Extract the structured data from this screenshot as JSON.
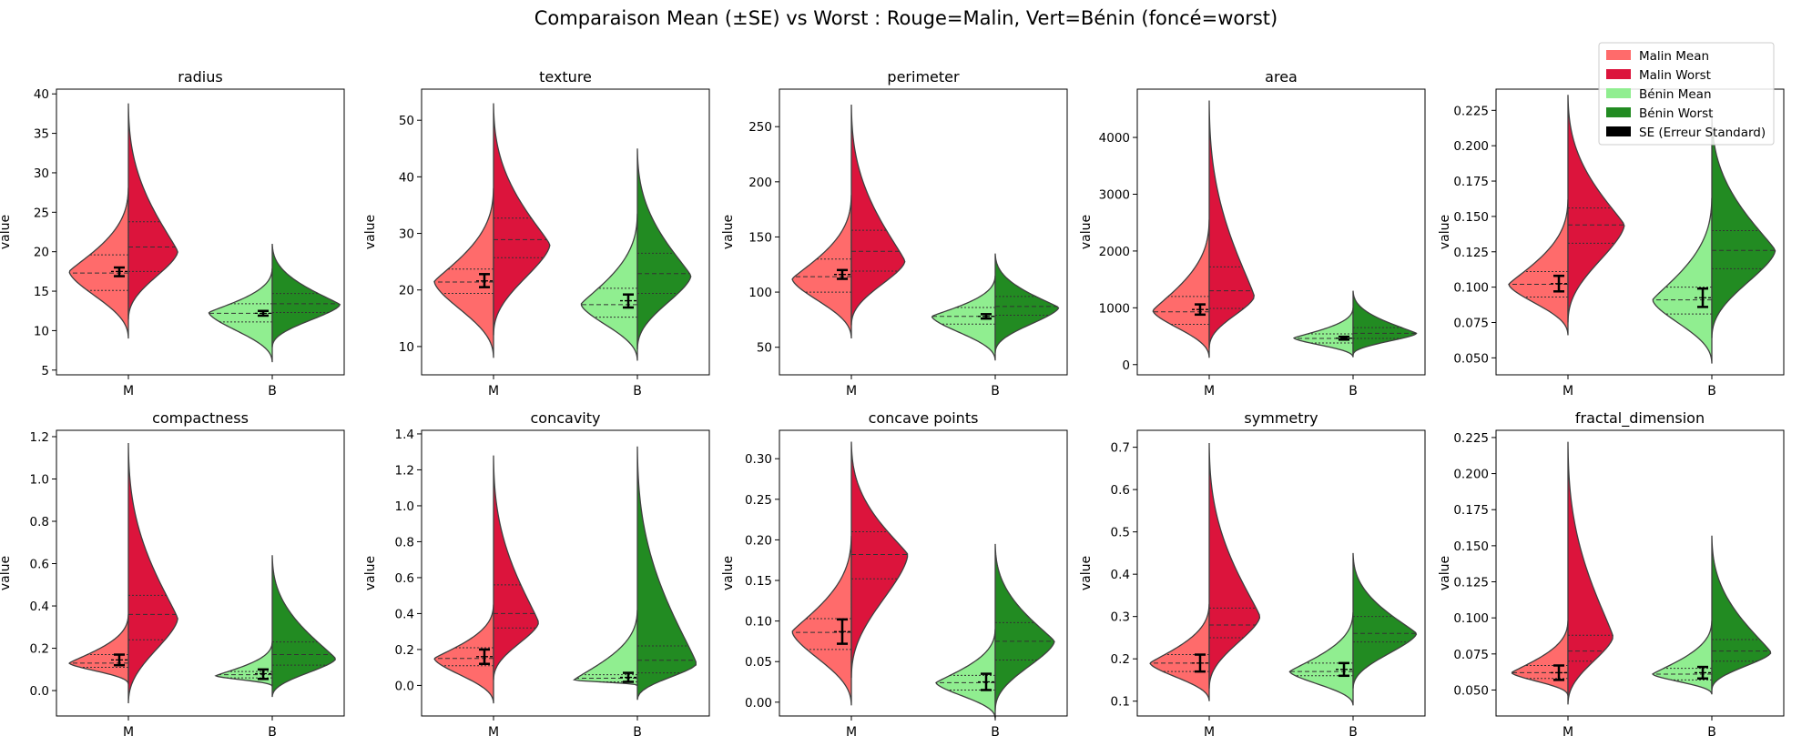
{
  "figure": {
    "title": "Comparaison Mean (±SE) vs Worst : Rouge=Malin, Vert=Bénin (foncé=worst)"
  },
  "legend": {
    "placement": "top-right",
    "entries": [
      {
        "label": "Malin Mean",
        "color": "#ff6b6b"
      },
      {
        "label": "Malin Worst",
        "color": "#dc143c"
      },
      {
        "label": "Bénin Mean",
        "color": "#90ee90"
      },
      {
        "label": "Bénin Worst",
        "color": "#228b22"
      },
      {
        "label": "SE (Erreur Standard)",
        "color": "#000000"
      }
    ]
  },
  "colors": {
    "malin_mean": "#ff6b6b",
    "malin_worst": "#dc143c",
    "benin_mean": "#90ee90",
    "benin_worst": "#228b22",
    "outline": "#3f3f3f",
    "se_bar": "#000000"
  },
  "chart_data": [
    {
      "type": "violin",
      "title": "radius",
      "ylabel": "value",
      "categories": [
        "M",
        "B"
      ],
      "ylim": [
        4.4,
        40.6
      ],
      "yticks": [
        "5",
        "10",
        "15",
        "20",
        "25",
        "30",
        "35",
        "40"
      ],
      "tick_values": [
        5,
        10,
        15,
        20,
        25,
        30,
        35,
        40
      ],
      "groups": [
        {
          "category": "M",
          "mean": {
            "min": 9.0,
            "max": 28.1,
            "mode": 17.5,
            "q1": 15.1,
            "median": 17.3,
            "q3": 19.6,
            "width": 0.42,
            "se_low": 16.9,
            "se_high": 18.0,
            "se_center": 17.5
          },
          "worst": {
            "min": 11.4,
            "max": 38.8,
            "mode": 20.0,
            "q1": 17.5,
            "median": 20.6,
            "q3": 23.8,
            "width": 0.35
          }
        },
        {
          "category": "B",
          "mean": {
            "min": 6.0,
            "max": 17.9,
            "mode": 12.3,
            "q1": 11.1,
            "median": 12.2,
            "q3": 13.4,
            "width": 0.45,
            "se_low": 11.9,
            "se_high": 12.5,
            "se_center": 12.2
          },
          "worst": {
            "min": 7.9,
            "max": 21.0,
            "mode": 13.3,
            "q1": 12.3,
            "median": 13.4,
            "q3": 14.7,
            "width": 0.48
          }
        }
      ]
    },
    {
      "type": "violin",
      "title": "texture",
      "ylabel": "value",
      "categories": [
        "M",
        "B"
      ],
      "ylim": [
        5.0,
        55.5
      ],
      "yticks": [
        "10",
        "20",
        "30",
        "40",
        "50"
      ],
      "tick_values": [
        10,
        20,
        30,
        40,
        50
      ],
      "groups": [
        {
          "category": "M",
          "mean": {
            "min": 8.0,
            "max": 38.0,
            "mode": 21.5,
            "q1": 19.4,
            "median": 21.4,
            "q3": 23.7,
            "width": 0.42,
            "se_low": 20.5,
            "se_high": 22.8,
            "se_center": 21.6
          },
          "worst": {
            "min": 12.0,
            "max": 53.0,
            "mode": 28.0,
            "q1": 25.7,
            "median": 28.9,
            "q3": 32.7,
            "width": 0.4
          }
        },
        {
          "category": "B",
          "mean": {
            "min": 7.5,
            "max": 33.5,
            "mode": 17.5,
            "q1": 15.2,
            "median": 17.4,
            "q3": 20.3,
            "width": 0.4,
            "se_low": 16.9,
            "se_high": 19.2,
            "se_center": 18.1
          },
          "worst": {
            "min": 9.5,
            "max": 45.0,
            "mode": 22.5,
            "q1": 19.4,
            "median": 22.9,
            "q3": 26.5,
            "width": 0.38
          }
        }
      ]
    },
    {
      "type": "violin",
      "title": "perimeter",
      "ylabel": "value",
      "categories": [
        "M",
        "B"
      ],
      "ylim": [
        25,
        284
      ],
      "yticks": [
        "50",
        "100",
        "150",
        "200",
        "250"
      ],
      "tick_values": [
        50,
        100,
        150,
        200,
        250
      ],
      "groups": [
        {
          "category": "M",
          "mean": {
            "min": 58,
            "max": 188,
            "mode": 112,
            "q1": 100,
            "median": 114,
            "q3": 130,
            "width": 0.42,
            "se_low": 112,
            "se_high": 120,
            "se_center": 116
          },
          "worst": {
            "min": 70,
            "max": 270,
            "mode": 128,
            "q1": 119,
            "median": 137,
            "q3": 156,
            "width": 0.38
          }
        },
        {
          "category": "B",
          "mean": {
            "min": 38,
            "max": 115,
            "mode": 78,
            "q1": 71,
            "median": 78,
            "q3": 86,
            "width": 0.45,
            "se_low": 76,
            "se_high": 80,
            "se_center": 78
          },
          "worst": {
            "min": 45,
            "max": 135,
            "mode": 86,
            "q1": 79,
            "median": 87,
            "q3": 96,
            "width": 0.45
          }
        }
      ]
    },
    {
      "type": "violin",
      "title": "area",
      "ylabel": "value",
      "categories": [
        "M",
        "B"
      ],
      "ylim": [
        -180,
        4850
      ],
      "yticks": [
        "0",
        "1000",
        "2000",
        "3000",
        "4000"
      ],
      "tick_values": [
        0,
        1000,
        2000,
        3000,
        4000
      ],
      "groups": [
        {
          "category": "M",
          "mean": {
            "min": 120,
            "max": 2550,
            "mode": 950,
            "q1": 710,
            "median": 930,
            "q3": 1200,
            "width": 0.4,
            "se_low": 880,
            "se_high": 1060,
            "se_center": 970
          },
          "worst": {
            "min": 290,
            "max": 4650,
            "mode": 1200,
            "q1": 990,
            "median": 1300,
            "q3": 1720,
            "width": 0.32
          }
        },
        {
          "category": "B",
          "mean": {
            "min": 130,
            "max": 1000,
            "mode": 470,
            "q1": 380,
            "median": 460,
            "q3": 540,
            "width": 0.42,
            "se_low": 440,
            "se_high": 490,
            "se_center": 465
          },
          "worst": {
            "min": 170,
            "max": 1300,
            "mode": 550,
            "q1": 460,
            "median": 550,
            "q3": 650,
            "width": 0.45
          }
        }
      ]
    },
    {
      "type": "violin",
      "title": "",
      "ylabel": "value",
      "categories": [
        "M",
        "B"
      ],
      "ylim": [
        0.038,
        0.24
      ],
      "yticks": [
        "0.050",
        "0.075",
        "0.100",
        "0.125",
        "0.150",
        "0.175",
        "0.200",
        "0.225"
      ],
      "tick_values": [
        0.05,
        0.075,
        0.1,
        0.125,
        0.15,
        0.175,
        0.2,
        0.225
      ],
      "groups": [
        {
          "category": "M",
          "mean": {
            "min": 0.066,
            "max": 0.162,
            "mode": 0.102,
            "q1": 0.093,
            "median": 0.102,
            "q3": 0.111,
            "width": 0.42,
            "se_low": 0.097,
            "se_high": 0.108,
            "se_center": 0.1025
          },
          "worst": {
            "min": 0.075,
            "max": 0.236,
            "mode": 0.144,
            "q1": 0.131,
            "median": 0.144,
            "q3": 0.156,
            "width": 0.4
          }
        },
        {
          "category": "B",
          "mean": {
            "min": 0.046,
            "max": 0.163,
            "mode": 0.091,
            "q1": 0.081,
            "median": 0.091,
            "q3": 0.1,
            "width": 0.42,
            "se_low": 0.086,
            "se_high": 0.099,
            "se_center": 0.0925
          },
          "worst": {
            "min": 0.064,
            "max": 0.223,
            "mode": 0.126,
            "q1": 0.113,
            "median": 0.126,
            "q3": 0.14,
            "width": 0.45
          }
        }
      ]
    },
    {
      "type": "violin",
      "title": "compactness",
      "ylabel": "value",
      "categories": [
        "M",
        "B"
      ],
      "ylim": [
        -0.12,
        1.23
      ],
      "yticks": [
        "0.0",
        "0.2",
        "0.4",
        "0.6",
        "0.8",
        "1.0",
        "1.2"
      ],
      "tick_values": [
        0,
        0.2,
        0.4,
        0.6,
        0.8,
        1.0,
        1.2
      ],
      "groups": [
        {
          "category": "M",
          "mean": {
            "min": 0.03,
            "max": 0.36,
            "mode": 0.13,
            "q1": 0.11,
            "median": 0.13,
            "q3": 0.17,
            "width": 0.42,
            "se_low": 0.12,
            "se_high": 0.17,
            "se_center": 0.145
          },
          "worst": {
            "min": -0.06,
            "max": 1.17,
            "mode": 0.34,
            "q1": 0.24,
            "median": 0.36,
            "q3": 0.45,
            "width": 0.35
          }
        },
        {
          "category": "B",
          "mean": {
            "min": 0.02,
            "max": 0.23,
            "mode": 0.07,
            "q1": 0.06,
            "median": 0.075,
            "q3": 0.09,
            "width": 0.4,
            "se_low": 0.055,
            "se_high": 0.1,
            "se_center": 0.08
          },
          "worst": {
            "min": -0.03,
            "max": 0.64,
            "mode": 0.15,
            "q1": 0.12,
            "median": 0.17,
            "q3": 0.23,
            "width": 0.45
          }
        }
      ]
    },
    {
      "type": "violin",
      "title": "concavity",
      "ylabel": "value",
      "categories": [
        "M",
        "B"
      ],
      "ylim": [
        -0.17,
        1.42
      ],
      "yticks": [
        "0.0",
        "0.2",
        "0.4",
        "0.6",
        "0.8",
        "1.0",
        "1.2",
        "1.4"
      ],
      "tick_values": [
        0,
        0.2,
        0.4,
        0.6,
        0.8,
        1.0,
        1.2,
        1.4
      ],
      "groups": [
        {
          "category": "M",
          "mean": {
            "min": -0.1,
            "max": 0.45,
            "mode": 0.15,
            "q1": 0.11,
            "median": 0.15,
            "q3": 0.21,
            "width": 0.42,
            "se_low": 0.12,
            "se_high": 0.2,
            "se_center": 0.16
          },
          "worst": {
            "min": 0.03,
            "max": 1.28,
            "mode": 0.35,
            "q1": 0.32,
            "median": 0.4,
            "q3": 0.56,
            "width": 0.32
          }
        },
        {
          "category": "B",
          "mean": {
            "min": 0.0,
            "max": 0.42,
            "mode": 0.03,
            "q1": 0.02,
            "median": 0.04,
            "q3": 0.06,
            "width": 0.45,
            "se_low": 0.02,
            "se_high": 0.07,
            "se_center": 0.045
          },
          "worst": {
            "min": -0.08,
            "max": 1.33,
            "mode": 0.12,
            "q1": 0.07,
            "median": 0.14,
            "q3": 0.22,
            "width": 0.42
          }
        }
      ]
    },
    {
      "type": "violin",
      "title": "concave points",
      "ylabel": "value",
      "categories": [
        "M",
        "B"
      ],
      "ylim": [
        -0.017,
        0.335
      ],
      "yticks": [
        "0.00",
        "0.05",
        "0.10",
        "0.15",
        "0.20",
        "0.25",
        "0.30"
      ],
      "tick_values": [
        0,
        0.05,
        0.1,
        0.15,
        0.2,
        0.25,
        0.3
      ],
      "groups": [
        {
          "category": "M",
          "mean": {
            "min": -0.004,
            "max": 0.205,
            "mode": 0.087,
            "q1": 0.065,
            "median": 0.086,
            "q3": 0.103,
            "width": 0.42,
            "se_low": 0.072,
            "se_high": 0.102,
            "se_center": 0.087
          },
          "worst": {
            "min": 0.03,
            "max": 0.321,
            "mode": 0.182,
            "q1": 0.152,
            "median": 0.182,
            "q3": 0.21,
            "width": 0.4
          }
        },
        {
          "category": "B",
          "mean": {
            "min": -0.02,
            "max": 0.09,
            "mode": 0.024,
            "q1": 0.015,
            "median": 0.024,
            "q3": 0.033,
            "width": 0.42,
            "se_low": 0.015,
            "se_high": 0.035,
            "se_center": 0.025
          },
          "worst": {
            "min": -0.01,
            "max": 0.195,
            "mode": 0.075,
            "q1": 0.052,
            "median": 0.075,
            "q3": 0.098,
            "width": 0.42
          }
        }
      ]
    },
    {
      "type": "violin",
      "title": "symmetry",
      "ylabel": "value",
      "categories": [
        "M",
        "B"
      ],
      "ylim": [
        0.065,
        0.74
      ],
      "yticks": [
        "0.1",
        "0.2",
        "0.3",
        "0.4",
        "0.5",
        "0.6",
        "0.7"
      ],
      "tick_values": [
        0.1,
        0.2,
        0.3,
        0.4,
        0.5,
        0.6,
        0.7
      ],
      "groups": [
        {
          "category": "M",
          "mean": {
            "min": 0.1,
            "max": 0.33,
            "mode": 0.19,
            "q1": 0.17,
            "median": 0.19,
            "q3": 0.21,
            "width": 0.42,
            "se_low": 0.17,
            "se_high": 0.21,
            "se_center": 0.19
          },
          "worst": {
            "min": 0.13,
            "max": 0.71,
            "mode": 0.3,
            "q1": 0.25,
            "median": 0.28,
            "q3": 0.32,
            "width": 0.36
          }
        },
        {
          "category": "B",
          "mean": {
            "min": 0.09,
            "max": 0.31,
            "mode": 0.17,
            "q1": 0.16,
            "median": 0.17,
            "q3": 0.19,
            "width": 0.45,
            "se_low": 0.16,
            "se_high": 0.19,
            "se_center": 0.175
          },
          "worst": {
            "min": 0.13,
            "max": 0.45,
            "mode": 0.26,
            "q1": 0.24,
            "median": 0.26,
            "q3": 0.3,
            "width": 0.45
          }
        }
      ]
    },
    {
      "type": "violin",
      "title": "fractal_dimension",
      "ylabel": "value",
      "categories": [
        "M",
        "B"
      ],
      "ylim": [
        0.032,
        0.23
      ],
      "yticks": [
        "0.050",
        "0.075",
        "0.100",
        "0.125",
        "0.150",
        "0.175",
        "0.200",
        "0.225"
      ],
      "tick_values": [
        0.05,
        0.075,
        0.1,
        0.125,
        0.15,
        0.175,
        0.2,
        0.225
      ],
      "groups": [
        {
          "category": "M",
          "mean": {
            "min": 0.046,
            "max": 0.098,
            "mode": 0.062,
            "q1": 0.058,
            "median": 0.062,
            "q3": 0.067,
            "width": 0.4,
            "se_low": 0.057,
            "se_high": 0.067,
            "se_center": 0.062
          },
          "worst": {
            "min": 0.04,
            "max": 0.222,
            "mode": 0.087,
            "q1": 0.07,
            "median": 0.077,
            "q3": 0.088,
            "width": 0.32
          }
        },
        {
          "category": "B",
          "mean": {
            "min": 0.047,
            "max": 0.098,
            "mode": 0.061,
            "q1": 0.057,
            "median": 0.061,
            "q3": 0.065,
            "width": 0.42,
            "se_low": 0.058,
            "se_high": 0.066,
            "se_center": 0.062
          },
          "worst": {
            "min": 0.05,
            "max": 0.157,
            "mode": 0.076,
            "q1": 0.07,
            "median": 0.077,
            "q3": 0.085,
            "width": 0.42
          }
        }
      ]
    }
  ]
}
